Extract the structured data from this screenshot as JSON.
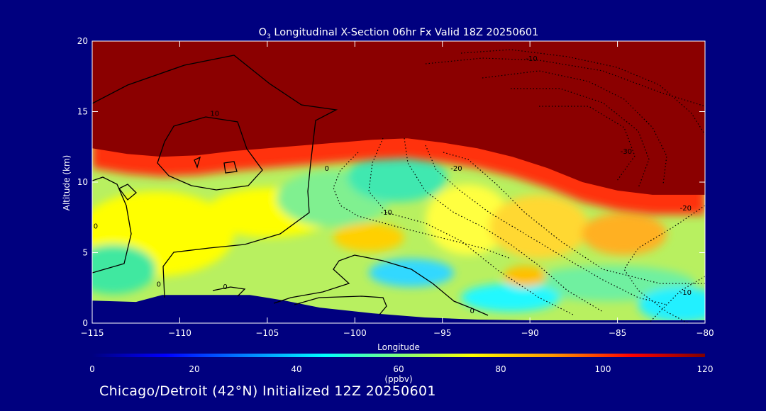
{
  "page": {
    "title_main": "O",
    "title_sub": "3",
    "title_rest": " Longitudinal X-Section 06hr  Fx Valid 18Z 20250601",
    "footer": "Chicago/Detroit (42°N) Initialized 12Z 20250601",
    "colors": {
      "background": "#00007f",
      "stratosphere_red": "#8b0000",
      "contour_line": "#000000",
      "text": "#ffffff"
    }
  },
  "chart_data": {
    "type": "heatmap",
    "title": "O3 Longitudinal X-Section 06hr  Fx Valid 18Z 20250601",
    "xlabel": "Longitude",
    "ylabel": "Altitude (km)",
    "xlim": [
      -115,
      -80
    ],
    "ylim": [
      0,
      20
    ],
    "x_ticks": [
      -115,
      -110,
      -105,
      -100,
      -95,
      -90,
      -85,
      -80
    ],
    "x_tick_labels": [
      "−115",
      "−110",
      "−105",
      "−100",
      "−95",
      "−90",
      "−85",
      "−80"
    ],
    "y_ticks": [
      0,
      5,
      10,
      15,
      20
    ],
    "y_tick_labels": [
      "0",
      "5",
      "10",
      "15",
      "20"
    ],
    "colorbar": {
      "label": "(ppbv)",
      "min": 0,
      "max": 120,
      "ticks": [
        0,
        20,
        40,
        60,
        80,
        100,
        120
      ],
      "tick_labels": [
        "0",
        "20",
        "40",
        "60",
        "80",
        "100",
        "120"
      ]
    },
    "tropopause_km": [
      {
        "lon": -115,
        "alt": 12.4
      },
      {
        "lon": -113,
        "alt": 12.0
      },
      {
        "lon": -111,
        "alt": 11.8
      },
      {
        "lon": -109,
        "alt": 11.9
      },
      {
        "lon": -107,
        "alt": 12.2
      },
      {
        "lon": -105,
        "alt": 12.4
      },
      {
        "lon": -103,
        "alt": 12.6
      },
      {
        "lon": -101,
        "alt": 12.8
      },
      {
        "lon": -99,
        "alt": 13.0
      },
      {
        "lon": -97,
        "alt": 13.1
      },
      {
        "lon": -95,
        "alt": 12.8
      },
      {
        "lon": -93,
        "alt": 12.4
      },
      {
        "lon": -91,
        "alt": 11.8
      },
      {
        "lon": -89,
        "alt": 11.0
      },
      {
        "lon": -87,
        "alt": 10.0
      },
      {
        "lon": -85,
        "alt": 9.4
      },
      {
        "lon": -83,
        "alt": 9.1
      },
      {
        "lon": -81,
        "alt": 9.1
      },
      {
        "lon": -80,
        "alt": 9.1
      }
    ],
    "terrain_km": [
      {
        "lon": -115,
        "alt": 1.6
      },
      {
        "lon": -112.5,
        "alt": 1.5
      },
      {
        "lon": -111,
        "alt": 2.0
      },
      {
        "lon": -109,
        "alt": 2.0
      },
      {
        "lon": -106,
        "alt": 2.0
      },
      {
        "lon": -104,
        "alt": 1.6
      },
      {
        "lon": -102,
        "alt": 1.1
      },
      {
        "lon": -99,
        "alt": 0.7
      },
      {
        "lon": -96,
        "alt": 0.4
      },
      {
        "lon": -93,
        "alt": 0.25
      },
      {
        "lon": -90,
        "alt": 0.2
      },
      {
        "lon": -87,
        "alt": 0.2
      },
      {
        "lon": -84,
        "alt": 0.2
      },
      {
        "lon": -80,
        "alt": 0.2
      }
    ],
    "contour_labels": [
      {
        "text": "10",
        "lon": -108,
        "alt": 14.7
      },
      {
        "text": "0",
        "lon": -101.6,
        "alt": 10.8
      },
      {
        "text": "0",
        "lon": -114.8,
        "alt": 6.7
      },
      {
        "text": "0",
        "lon": -111.2,
        "alt": 2.6
      },
      {
        "text": "0",
        "lon": -107.4,
        "alt": 2.4
      },
      {
        "text": "0",
        "lon": -93.3,
        "alt": 0.7
      },
      {
        "text": "-10",
        "lon": -89.9,
        "alt": 18.6
      },
      {
        "text": "-30",
        "lon": -84.5,
        "alt": 12.0
      },
      {
        "text": "-20",
        "lon": -94.2,
        "alt": 10.8
      },
      {
        "text": "-10",
        "lon": -98.2,
        "alt": 7.7
      },
      {
        "text": "-20",
        "lon": -81.1,
        "alt": 8.0
      },
      {
        "text": "-10",
        "lon": -81.1,
        "alt": 2.0
      }
    ]
  }
}
